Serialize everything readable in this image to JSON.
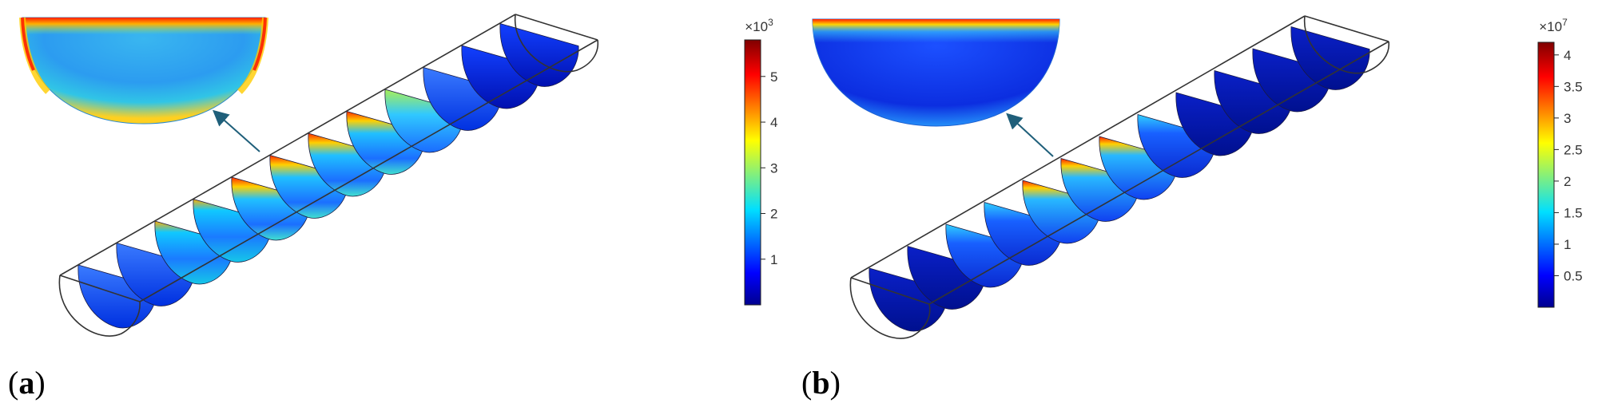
{
  "panels": [
    {
      "label_open": "(",
      "label_letter": "a",
      "label_close": ")",
      "colorbar": {
        "exponent_text": "×10",
        "exponent_power": "3",
        "ticks": [
          {
            "label": "1",
            "value": 1
          },
          {
            "label": "2",
            "value": 2
          },
          {
            "label": "3",
            "value": 3
          },
          {
            "label": "4",
            "value": 4
          },
          {
            "label": "5",
            "value": 5
          }
        ],
        "range": [
          0,
          5.8
        ]
      }
    },
    {
      "label_open": "(",
      "label_letter": "b",
      "label_close": ")",
      "colorbar": {
        "exponent_text": "×10",
        "exponent_power": "7",
        "ticks": [
          {
            "label": "0.5",
            "value": 0.5
          },
          {
            "label": "1",
            "value": 1
          },
          {
            "label": "1.5",
            "value": 1.5
          },
          {
            "label": "2",
            "value": 2
          },
          {
            "label": "2.5",
            "value": 2.5
          },
          {
            "label": "3",
            "value": 3
          },
          {
            "label": "3.5",
            "value": 3.5
          },
          {
            "label": "4",
            "value": 4
          }
        ],
        "range": [
          0,
          4.2
        ]
      }
    }
  ],
  "colors": {
    "jet_dark_blue": "#00008f",
    "jet_blue": "#0050ff",
    "jet_cyan": "#00e5ff",
    "jet_yellow": "#ffee00",
    "jet_red": "#ff1a00",
    "jet_dark_red": "#800000",
    "outline": "#333333",
    "arrow": "#1f5f7a"
  }
}
